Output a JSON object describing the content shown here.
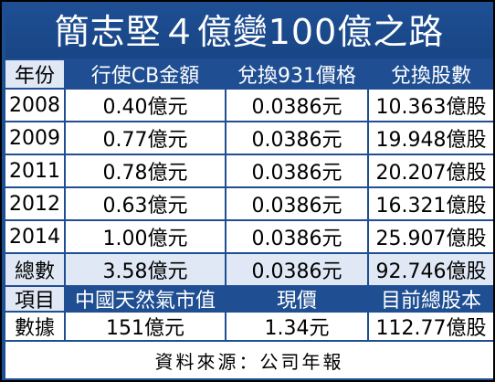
{
  "title": "簡志堅４億變100億之路",
  "columns": [
    "年份",
    "行使CB金額",
    "兌換931價格",
    "兌換股數"
  ],
  "rows": [
    [
      "2008",
      "0.40億元",
      "0.0386元",
      "10.363億股"
    ],
    [
      "2009",
      "0.77億元",
      "0.0386元",
      "19.948億股"
    ],
    [
      "2011",
      "0.78億元",
      "0.0386元",
      "20.207億股"
    ],
    [
      "2012",
      "0.63億元",
      "0.0386元",
      "16.321億股"
    ],
    [
      "2014",
      "1.00億元",
      "0.0386元",
      "25.907億股"
    ]
  ],
  "total_row": [
    "總數",
    "3.58億元",
    "0.0386元",
    "92.746億股"
  ],
  "columns2": [
    "項目",
    "中國天然氣市值",
    "現價",
    "目前總股本"
  ],
  "data_row": [
    "數據",
    "151億元",
    "1.34元",
    "112.77億股"
  ],
  "source": "資料來源：公司年報"
}
